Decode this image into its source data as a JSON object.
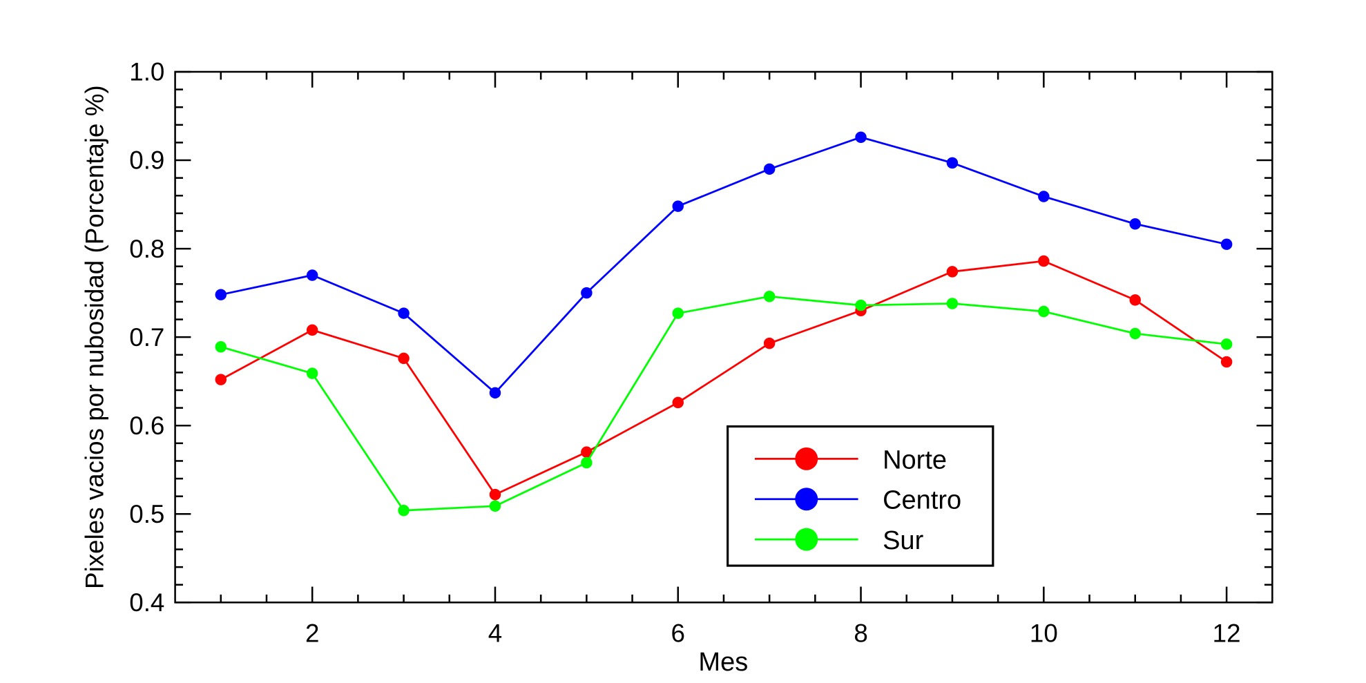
{
  "chart_data": {
    "type": "line",
    "title": "",
    "xlabel": "Mes",
    "ylabel": "Pixeles vacios por nubosidad (Porcentaje %)",
    "xlim": [
      0.5,
      12.5
    ],
    "ylim": [
      0.4,
      1.0
    ],
    "xticks": [
      2,
      4,
      6,
      8,
      10,
      12
    ],
    "xtick_labels": [
      "2",
      "4",
      "6",
      "8",
      "10",
      "12"
    ],
    "yticks": [
      0.4,
      0.5,
      0.6,
      0.7,
      0.8,
      0.9,
      1.0
    ],
    "ytick_labels": [
      "0.4",
      "0.5",
      "0.6",
      "0.7",
      "0.8",
      "0.9",
      "1.0"
    ],
    "grid": false,
    "legend_position": "lower-center-right",
    "x": [
      1,
      2,
      3,
      4,
      5,
      6,
      7,
      8,
      9,
      10,
      11,
      12
    ],
    "series": [
      {
        "name": "Norte",
        "color": "#ff0000",
        "values": [
          0.652,
          0.708,
          0.676,
          0.522,
          0.57,
          0.626,
          0.693,
          0.73,
          0.774,
          0.786,
          0.742,
          0.672
        ]
      },
      {
        "name": "Centro",
        "color": "#0000ff",
        "values": [
          0.748,
          0.77,
          0.727,
          0.637,
          0.75,
          0.848,
          0.89,
          0.926,
          0.897,
          0.859,
          0.828,
          0.805
        ]
      },
      {
        "name": "Sur",
        "color": "#00ff00",
        "values": [
          0.689,
          0.659,
          0.504,
          0.509,
          0.558,
          0.727,
          0.746,
          0.736,
          0.738,
          0.729,
          0.704,
          0.692
        ]
      }
    ]
  }
}
